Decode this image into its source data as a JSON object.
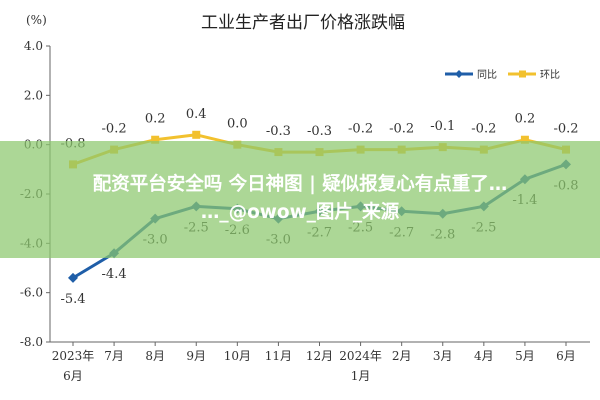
{
  "chart_data": {
    "type": "line",
    "title": "工业生产者出厂价格涨跌幅",
    "unit": "(%)",
    "ylim": [
      -8.0,
      4.0
    ],
    "yticks": [
      "4.0",
      "2.0",
      "0.0",
      "-2.0",
      "-4.0",
      "-6.0",
      "-8.0"
    ],
    "ytick_values": [
      4,
      2,
      0,
      -2,
      -4,
      -6,
      -8
    ],
    "categories": [
      [
        "2023年",
        "6月"
      ],
      [
        "7月"
      ],
      [
        "8月"
      ],
      [
        "9月"
      ],
      [
        "10月"
      ],
      [
        "11月"
      ],
      [
        "12月"
      ],
      [
        "2024年",
        "1月"
      ],
      [
        "2月"
      ],
      [
        "3月"
      ],
      [
        "4月"
      ],
      [
        "5月"
      ],
      [
        "6月"
      ]
    ],
    "series": [
      {
        "name": "同比",
        "color": "#1f5ea8",
        "values": [
          -5.4,
          -4.4,
          -3.0,
          -2.5,
          -2.6,
          -3.0,
          -2.7,
          -2.5,
          -2.7,
          -2.8,
          -2.5,
          -1.4,
          -0.8
        ],
        "labels": [
          "-5.4",
          "-4.4",
          "-3.0",
          "-2.5",
          "-2.6",
          "-3.0",
          "-2.7",
          "-2.5",
          "-2.7",
          "-2.8",
          "-2.5",
          "-1.4",
          "-0.8"
        ]
      },
      {
        "name": "环比",
        "color": "#f2c12e",
        "values": [
          -0.8,
          -0.2,
          0.2,
          0.4,
          0.0,
          -0.3,
          -0.3,
          -0.2,
          -0.2,
          -0.1,
          -0.2,
          0.2,
          -0.2
        ],
        "labels": [
          "-0.8",
          "-0.2",
          "0.2",
          "0.4",
          "0.0",
          "-0.3",
          "-0.3",
          "-0.2",
          "-0.2",
          "-0.1",
          "-0.2",
          "0.2",
          "-0.2"
        ]
      }
    ],
    "legend": "top-right",
    "grid": false
  },
  "overlay": {
    "line1": "配资平台安全吗 今日神图 | 疑似报复心有点重了…",
    "line2": "…_@owow_图片_来源"
  }
}
